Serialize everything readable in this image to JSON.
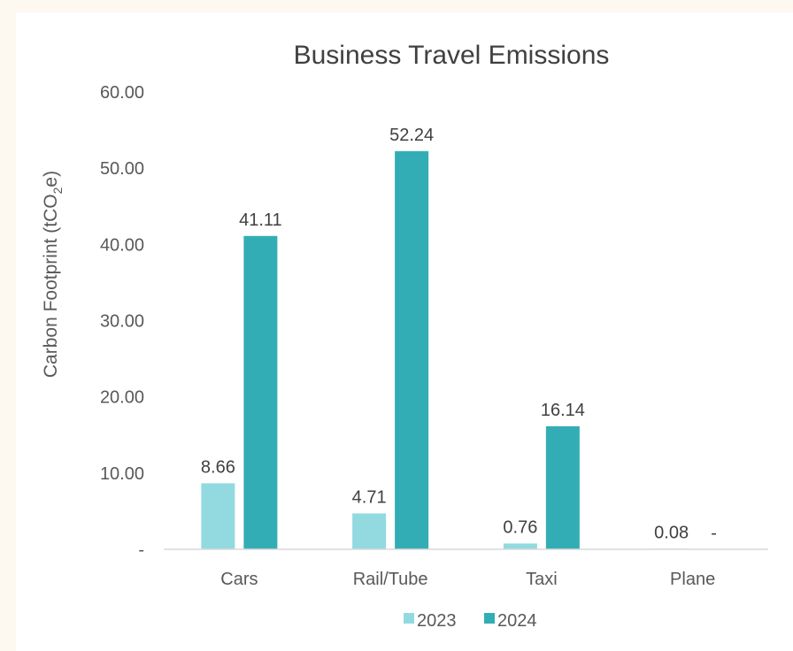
{
  "chart_data": {
    "type": "bar",
    "title": "Business Travel Emissions",
    "ylabel_parts": [
      "Carbon Footprint (tCO",
      "2",
      "e)"
    ],
    "categories": [
      "Cars",
      "Rail/Tube",
      "Taxi",
      "Plane"
    ],
    "series": [
      {
        "name": "2023",
        "values": [
          8.66,
          4.71,
          0.76,
          0.08
        ],
        "labels": [
          "8.66",
          "4.71",
          "0.76",
          "0.08"
        ]
      },
      {
        "name": "2024",
        "values": [
          41.11,
          52.24,
          16.14,
          0
        ],
        "labels": [
          "41.11",
          "52.24",
          "16.14",
          "-"
        ]
      }
    ],
    "ylim": [
      0,
      60
    ],
    "yticks": [
      0,
      10,
      20,
      30,
      40,
      50,
      60
    ],
    "ytick_labels": [
      "-",
      "10.00",
      "20.00",
      "30.00",
      "40.00",
      "50.00",
      "60.00"
    ],
    "gridlines": false,
    "legend_position": "bottom",
    "colors": {
      "2023": "#92dae0",
      "2024": "#33adb5"
    }
  }
}
